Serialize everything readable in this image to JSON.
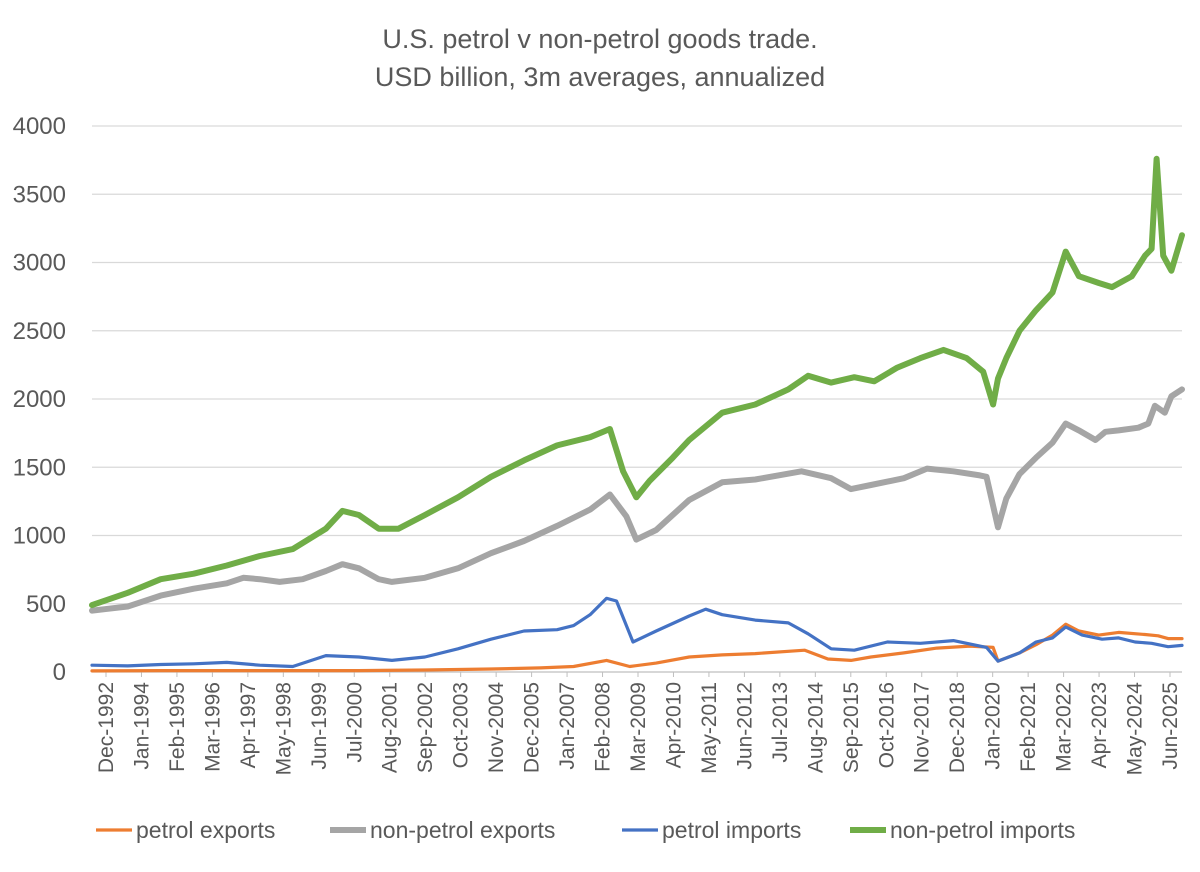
{
  "chart_data": {
    "type": "line",
    "title": "U.S. petrol v non-petrol goods trade.",
    "subtitle": "USD billion, 3m averages, annualized",
    "xlabel": "",
    "ylabel": "",
    "ylim": [
      0,
      4000
    ],
    "yticks": [
      "0",
      "500",
      "1000",
      "1500",
      "2000",
      "2500",
      "3000",
      "3500",
      "4000"
    ],
    "x_range": [
      1992.92,
      2025.92
    ],
    "xticks": [
      "Dec-1992",
      "Jan-1994",
      "Feb-1995",
      "Mar-1996",
      "Apr-1997",
      "May-1998",
      "Jun-1999",
      "Jul-2000",
      "Aug-2001",
      "Sep-2002",
      "Oct-2003",
      "Nov-2004",
      "Dec-2005",
      "Jan-2007",
      "Feb-2008",
      "Mar-2009",
      "Apr-2010",
      "May-2011",
      "Jun-2012",
      "Jul-2013",
      "Aug-2014",
      "Sep-2015",
      "Oct-2016",
      "Nov-2017",
      "Dec-2018",
      "Jan-2020",
      "Feb-2021",
      "Mar-2022",
      "Apr-2023",
      "May-2024",
      "Jun-2025"
    ],
    "grid": true,
    "legend_position": "bottom",
    "series": [
      {
        "name": "petrol exports",
        "color": "#ed7d31",
        "x": [
          1992.92,
          1995,
          1998,
          2001,
          2003,
          2005,
          2006.5,
          2007.5,
          2008.5,
          2009.2,
          2010,
          2011,
          2012,
          2013,
          2014.5,
          2015.2,
          2015.9,
          2016.5,
          2017.5,
          2018.5,
          2019.5,
          2020.2,
          2020.35,
          2021,
          2021.5,
          2022,
          2022.4,
          2022.8,
          2023.4,
          2024,
          2024.8,
          2025.2,
          2025.5,
          2025.92
        ],
        "values": [
          8,
          10,
          10,
          10,
          15,
          22,
          30,
          40,
          85,
          40,
          65,
          110,
          125,
          135,
          160,
          95,
          85,
          110,
          140,
          175,
          190,
          180,
          80,
          140,
          200,
          270,
          350,
          300,
          270,
          290,
          275,
          265,
          245,
          245
        ]
      },
      {
        "name": "non-petrol exports",
        "color": "#a5a5a5",
        "x": [
          1992.92,
          1993.3,
          1994,
          1995,
          1996,
          1997,
          1997.5,
          1998,
          1998.6,
          1999.3,
          2000,
          2000.5,
          2001,
          2001.6,
          2002,
          2003,
          2004,
          2005,
          2006,
          2007,
          2008,
          2008.6,
          2009.1,
          2009.4,
          2010,
          2011,
          2012,
          2013,
          2014.4,
          2015.3,
          2015.9,
          2016.5,
          2017.5,
          2018.2,
          2019,
          2019.8,
          2020.0,
          2020.35,
          2020.6,
          2021,
          2021.5,
          2022,
          2022.4,
          2022.8,
          2023.3,
          2023.6,
          2024,
          2024.6,
          2024.9,
          2025.1,
          2025.4,
          2025.6,
          2025.92
        ],
        "values": [
          450,
          460,
          480,
          560,
          610,
          650,
          690,
          680,
          660,
          680,
          740,
          790,
          760,
          680,
          660,
          690,
          760,
          870,
          960,
          1070,
          1190,
          1300,
          1140,
          970,
          1040,
          1260,
          1390,
          1410,
          1470,
          1420,
          1340,
          1370,
          1420,
          1490,
          1470,
          1440,
          1430,
          1060,
          1270,
          1450,
          1570,
          1680,
          1820,
          1770,
          1700,
          1760,
          1770,
          1790,
          1820,
          1950,
          1900,
          2020,
          2070
        ]
      },
      {
        "name": "petrol imports",
        "color": "#4472c4",
        "x": [
          1992.92,
          1994,
          1995,
          1996,
          1997,
          1998,
          1999,
          2000,
          2001,
          2002,
          2003,
          2004,
          2005,
          2006,
          2007,
          2007.5,
          2008,
          2008.5,
          2008.8,
          2009.3,
          2010,
          2011,
          2011.5,
          2012,
          2013,
          2014,
          2014.6,
          2015.3,
          2016,
          2017,
          2018,
          2019,
          2020.0,
          2020.35,
          2021,
          2021.5,
          2022,
          2022.4,
          2022.9,
          2023.5,
          2024,
          2024.5,
          2025,
          2025.5,
          2025.92
        ],
        "values": [
          50,
          45,
          55,
          60,
          70,
          50,
          40,
          120,
          110,
          85,
          110,
          170,
          240,
          300,
          310,
          340,
          420,
          540,
          520,
          220,
          300,
          410,
          460,
          420,
          380,
          360,
          280,
          170,
          160,
          220,
          210,
          230,
          180,
          80,
          140,
          220,
          250,
          330,
          270,
          240,
          250,
          220,
          210,
          185,
          195
        ]
      },
      {
        "name": "non-petrol imports",
        "color": "#70ad47",
        "x": [
          1992.92,
          1994,
          1995,
          1996,
          1997,
          1998,
          1999,
          2000,
          2000.5,
          2001,
          2001.6,
          2002.2,
          2003,
          2004,
          2005,
          2006,
          2007,
          2008,
          2008.6,
          2009.0,
          2009.4,
          2009.8,
          2010.5,
          2011,
          2012,
          2013,
          2014,
          2014.6,
          2015.3,
          2016,
          2016.6,
          2017.3,
          2018,
          2018.7,
          2019.4,
          2019.9,
          2020.2,
          2020.35,
          2020.6,
          2021,
          2021.5,
          2022,
          2022.4,
          2022.8,
          2023.4,
          2023.8,
          2024.4,
          2024.8,
          2025.0,
          2025.15,
          2025.35,
          2025.6,
          2025.92
        ],
        "values": [
          490,
          580,
          680,
          720,
          780,
          850,
          900,
          1050,
          1180,
          1150,
          1050,
          1050,
          1150,
          1280,
          1430,
          1550,
          1660,
          1720,
          1780,
          1470,
          1280,
          1400,
          1570,
          1700,
          1900,
          1960,
          2070,
          2170,
          2120,
          2160,
          2130,
          2230,
          2300,
          2360,
          2300,
          2200,
          1960,
          2150,
          2300,
          2500,
          2650,
          2780,
          3080,
          2900,
          2850,
          2820,
          2900,
          3050,
          3100,
          3760,
          3050,
          2940,
          3200
        ]
      }
    ]
  }
}
